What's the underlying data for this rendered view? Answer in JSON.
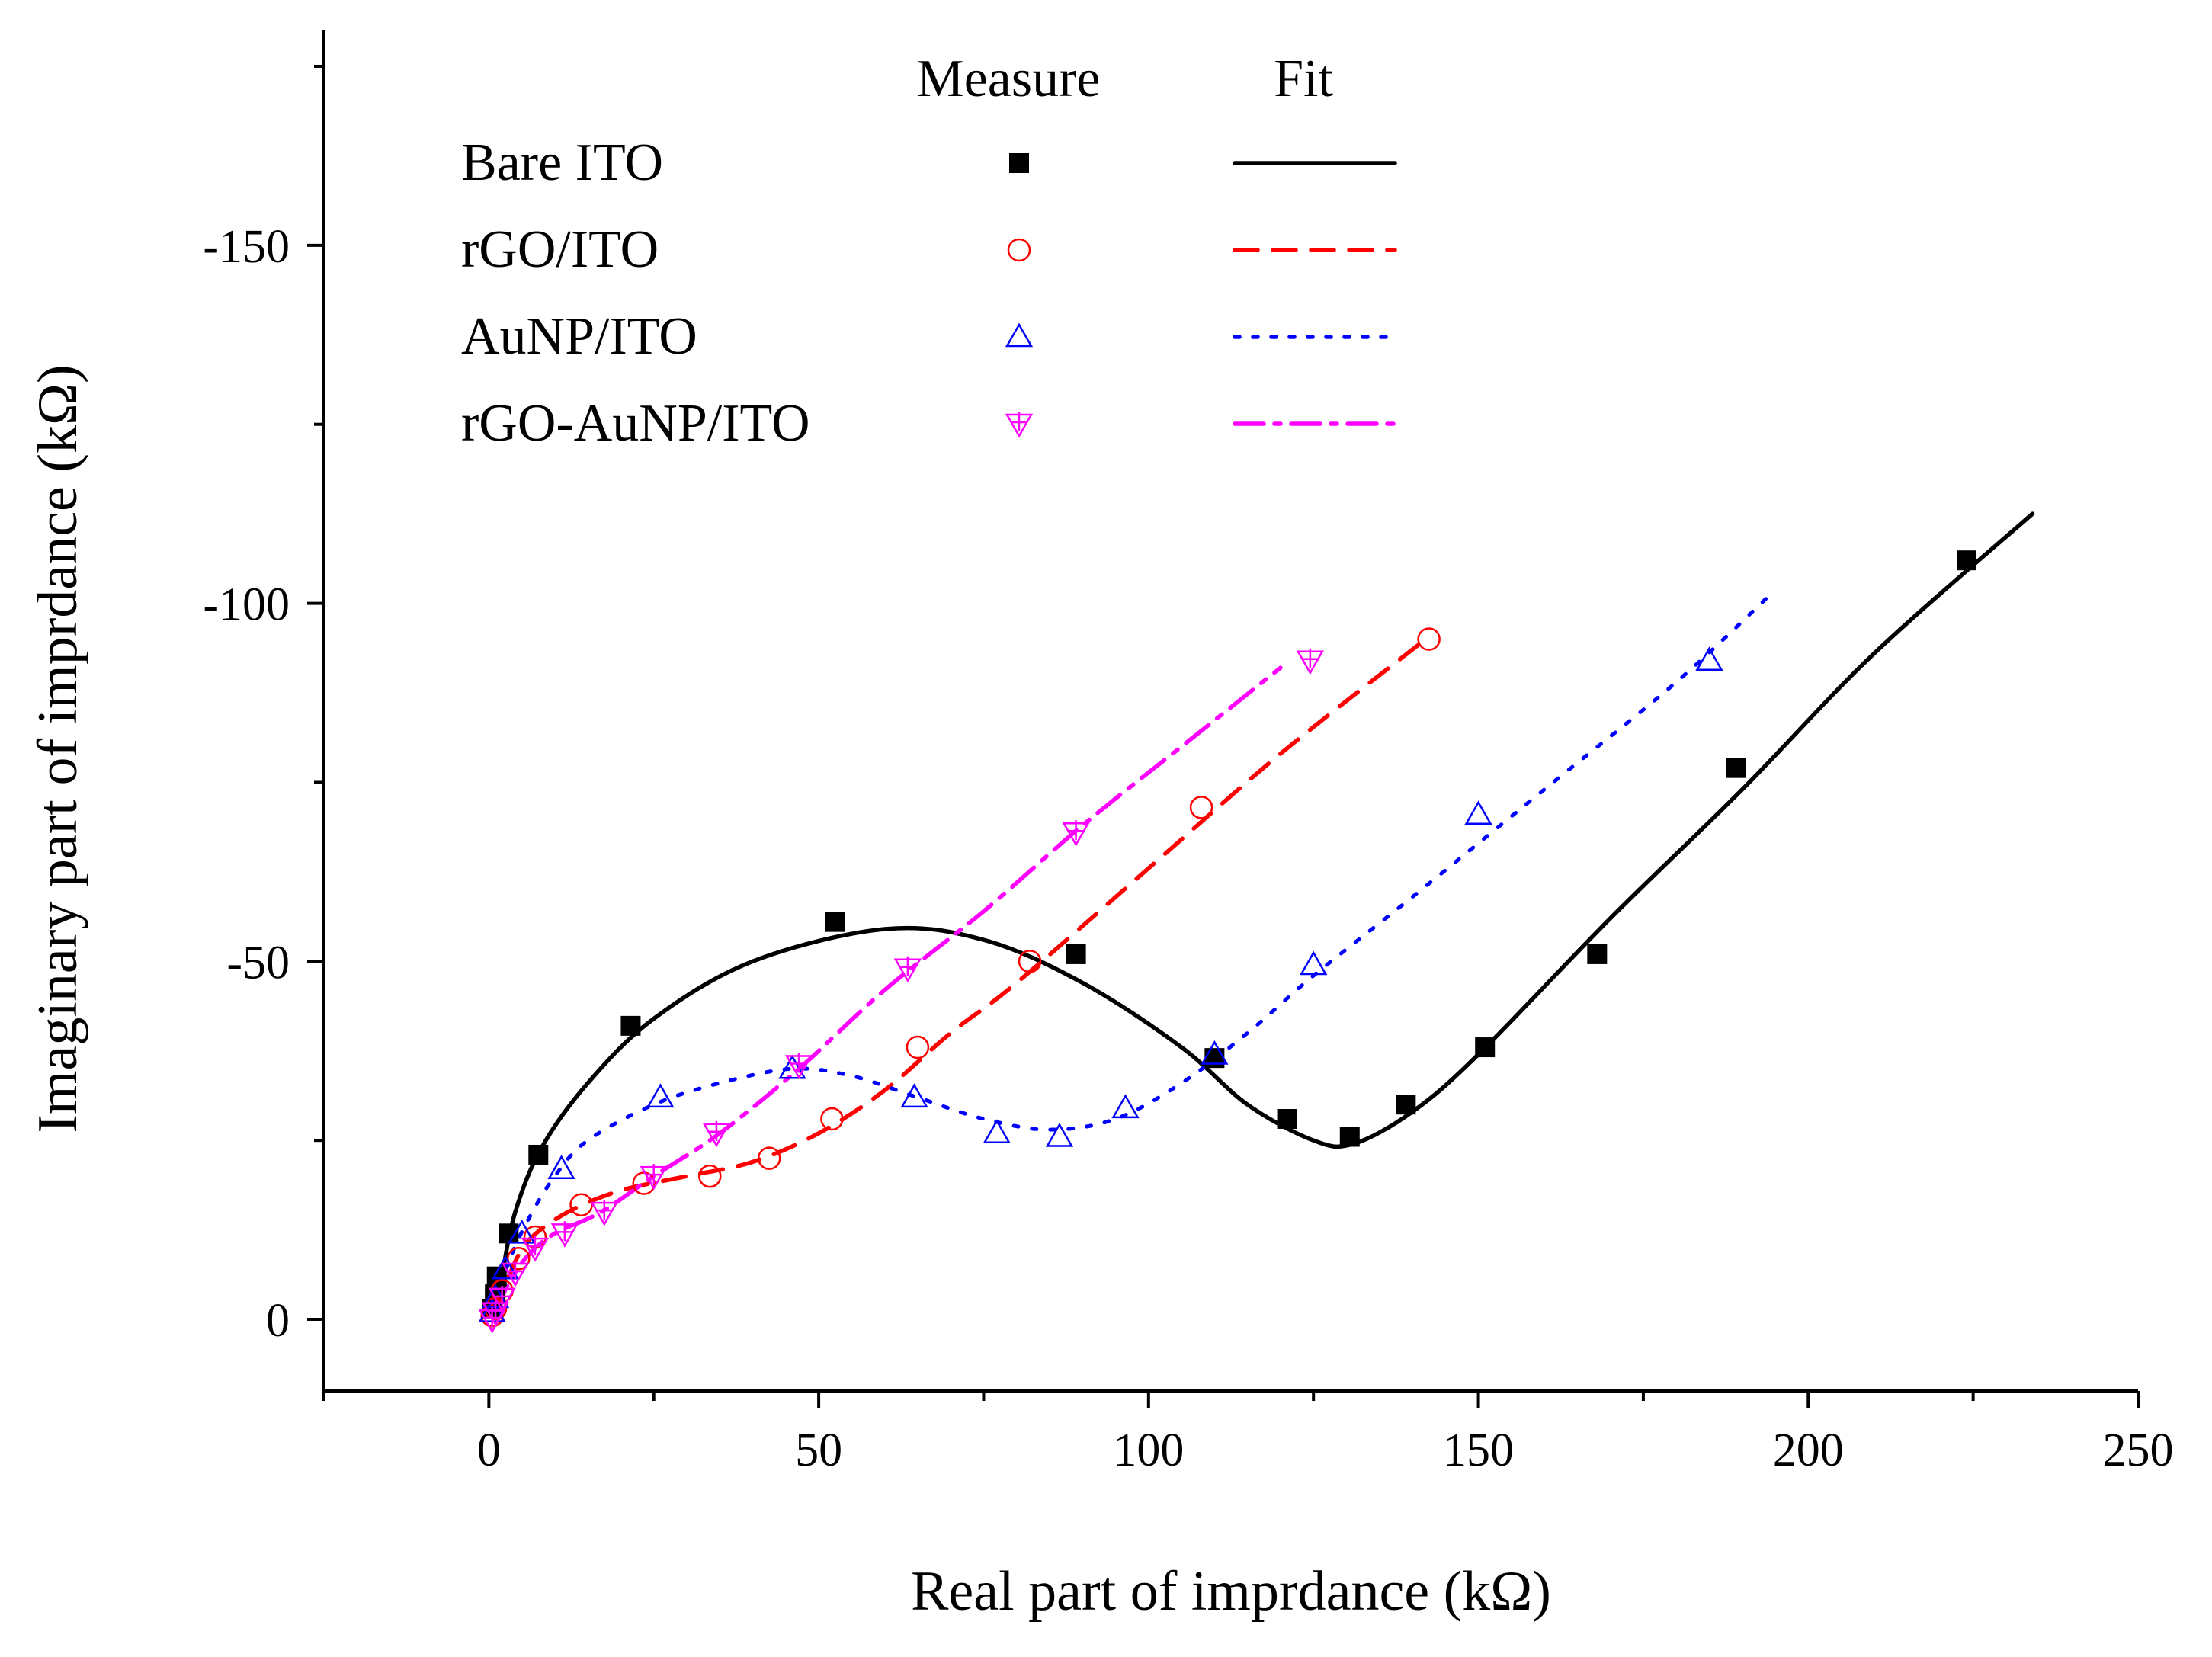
{
  "chart_data": {
    "type": "scatter",
    "xlabel": "Real part of imprdance (kΩ)",
    "ylabel": "Imaginary part of imprdance (kΩ)",
    "xlim": [
      -25,
      250
    ],
    "ylim": [
      10,
      -180
    ],
    "x_ticks": [
      0,
      50,
      100,
      150,
      200,
      250
    ],
    "x_tick_labels": [
      "0",
      "50",
      "100",
      "150",
      "200",
      "250"
    ],
    "y_ticks": [
      0,
      -50,
      -100,
      -150
    ],
    "y_tick_labels": [
      "0",
      "-50",
      "-100",
      "-150"
    ],
    "legend": {
      "position": "top-left",
      "header_measure": "Measure",
      "header_fit": "Fit"
    },
    "series": [
      {
        "name": "Bare ITO",
        "color": "#000000",
        "marker": "filled-square",
        "line_style": "solid",
        "measure": [
          [
            0.5,
            -1.5
          ],
          [
            0.9,
            -3.5
          ],
          [
            1.2,
            -6
          ],
          [
            3,
            -12
          ],
          [
            7.5,
            -23
          ],
          [
            21.5,
            -41
          ],
          [
            52.5,
            -55.5
          ],
          [
            89,
            -51
          ],
          [
            110,
            -36.5
          ],
          [
            121,
            -28
          ],
          [
            130.5,
            -25.5
          ],
          [
            139,
            -30
          ],
          [
            151,
            -38
          ],
          [
            168,
            -51
          ],
          [
            189,
            -77
          ],
          [
            224,
            -106
          ]
        ],
        "fit": [
          [
            1.5,
            -2
          ],
          [
            2,
            -6
          ],
          [
            4,
            -15
          ],
          [
            8,
            -24
          ],
          [
            15,
            -33
          ],
          [
            25,
            -42
          ],
          [
            40,
            -50
          ],
          [
            60,
            -54.5
          ],
          [
            75,
            -53
          ],
          [
            90,
            -47
          ],
          [
            105,
            -38
          ],
          [
            115,
            -30
          ],
          [
            125,
            -25
          ],
          [
            131,
            -24.5
          ],
          [
            140,
            -29
          ],
          [
            150,
            -37
          ],
          [
            170,
            -56
          ],
          [
            190,
            -74
          ],
          [
            210,
            -93
          ],
          [
            234,
            -112.5
          ]
        ]
      },
      {
        "name": "rGO/ITO",
        "color": "#ff0000",
        "marker": "open-circle",
        "line_style": "dashed",
        "measure": [
          [
            0.5,
            -0.5
          ],
          [
            1,
            -1.5
          ],
          [
            2,
            -4
          ],
          [
            4.5,
            -8.5
          ],
          [
            7,
            -11.5
          ],
          [
            14,
            -16
          ],
          [
            23.5,
            -19
          ],
          [
            33.5,
            -20
          ],
          [
            42.5,
            -22.5
          ],
          [
            52,
            -28
          ],
          [
            65,
            -38
          ],
          [
            82,
            -50
          ],
          [
            108,
            -71.5
          ],
          [
            142.5,
            -95
          ]
        ],
        "fit": [
          [
            1,
            -1
          ],
          [
            3,
            -6
          ],
          [
            6,
            -11
          ],
          [
            12,
            -15
          ],
          [
            20,
            -18
          ],
          [
            30,
            -20
          ],
          [
            40,
            -22
          ],
          [
            50,
            -26
          ],
          [
            60,
            -32
          ],
          [
            70,
            -40
          ],
          [
            80,
            -47
          ],
          [
            100,
            -63
          ],
          [
            120,
            -79
          ],
          [
            142,
            -95
          ]
        ]
      },
      {
        "name": "AuNP/ITO",
        "color": "#0000ff",
        "marker": "open-triangle",
        "line_style": "dotted",
        "measure": [
          [
            0.5,
            -1
          ],
          [
            1,
            -3
          ],
          [
            2.5,
            -7
          ],
          [
            5,
            -12
          ],
          [
            11,
            -21
          ],
          [
            26,
            -31
          ],
          [
            46,
            -35
          ],
          [
            64.5,
            -31
          ],
          [
            77,
            -26
          ],
          [
            86.5,
            -25.5
          ],
          [
            96.5,
            -29.5
          ],
          [
            110,
            -37
          ],
          [
            125,
            -49.5
          ],
          [
            150,
            -70.5
          ],
          [
            185,
            -92
          ]
        ],
        "fit": [
          [
            1,
            -2
          ],
          [
            3,
            -8
          ],
          [
            6,
            -14
          ],
          [
            10,
            -20
          ],
          [
            15,
            -25
          ],
          [
            25,
            -30
          ],
          [
            35,
            -33
          ],
          [
            46,
            -35
          ],
          [
            55,
            -34
          ],
          [
            65,
            -31
          ],
          [
            75,
            -28
          ],
          [
            85,
            -26.5
          ],
          [
            95,
            -28
          ],
          [
            105,
            -33
          ],
          [
            115,
            -40
          ],
          [
            125,
            -48
          ],
          [
            140,
            -59
          ],
          [
            160,
            -74
          ],
          [
            180,
            -89
          ],
          [
            194,
            -101
          ]
        ]
      },
      {
        "name": "rGO-AuNP/ITO",
        "color": "#ff00ff",
        "marker": "open-triangle-down-plus",
        "line_style": "dash-dot",
        "measure": [
          [
            0.5,
            0
          ],
          [
            1,
            -1
          ],
          [
            2,
            -3
          ],
          [
            4,
            -6.5
          ],
          [
            7,
            -10
          ],
          [
            11.5,
            -12
          ],
          [
            17.5,
            -15
          ],
          [
            25,
            -20
          ],
          [
            34.5,
            -26
          ],
          [
            47,
            -35.5
          ],
          [
            63.5,
            -49
          ],
          [
            89,
            -68
          ],
          [
            124.5,
            -92
          ]
        ],
        "fit": [
          [
            1,
            -1
          ],
          [
            3,
            -5
          ],
          [
            6,
            -9
          ],
          [
            10,
            -12
          ],
          [
            17,
            -15
          ],
          [
            25,
            -20
          ],
          [
            35,
            -26
          ],
          [
            47,
            -35
          ],
          [
            60,
            -46
          ],
          [
            75,
            -57
          ],
          [
            90,
            -69
          ],
          [
            105,
            -80
          ],
          [
            120,
            -91
          ]
        ]
      }
    ]
  }
}
